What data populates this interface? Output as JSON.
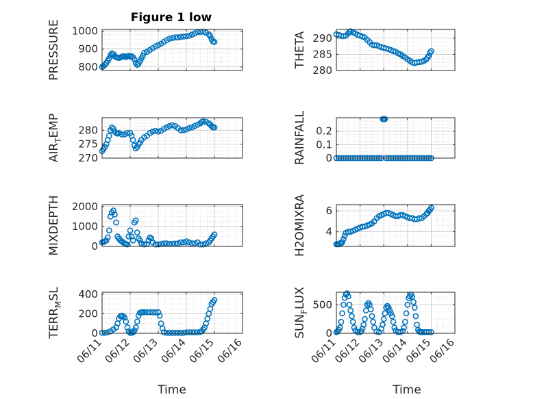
{
  "figure": {
    "title": "Figure 1 low",
    "xlabel": "Time"
  },
  "colors": {
    "marker": "#0072bd",
    "axis": "#262626",
    "grid": "#d7d7d7"
  },
  "chart_data": [
    {
      "type": "scatter",
      "ylabel": "PRESSURE",
      "ylabel_sub": "",
      "xlim": [
        "06/11",
        "06/16"
      ],
      "xticks": [
        "06/11",
        "06/12",
        "06/13",
        "06/14",
        "06/15",
        "06/16"
      ],
      "ylim": [
        780,
        1010
      ],
      "yticks": [
        800,
        900,
        1000
      ],
      "x": [
        11.0,
        11.05,
        11.1,
        11.15,
        11.2,
        11.25,
        11.3,
        11.35,
        11.4,
        11.45,
        11.5,
        11.55,
        11.6,
        11.65,
        11.7,
        11.75,
        11.8,
        11.85,
        11.9,
        11.95,
        12.0,
        12.05,
        12.1,
        12.15,
        12.2,
        12.25,
        12.3,
        12.35,
        12.4,
        12.45,
        12.5,
        12.6,
        12.7,
        12.8,
        12.9,
        13.0,
        13.1,
        13.2,
        13.3,
        13.4,
        13.5,
        13.6,
        13.7,
        13.8,
        13.9,
        14.0,
        14.1,
        14.2,
        14.3,
        14.4,
        14.5,
        14.6,
        14.7,
        14.8,
        14.85,
        14.9,
        14.95,
        15.0
      ],
      "y": [
        800,
        805,
        812,
        822,
        835,
        848,
        865,
        875,
        872,
        860,
        855,
        852,
        850,
        853,
        857,
        860,
        858,
        855,
        860,
        862,
        858,
        860,
        855,
        842,
        822,
        812,
        818,
        832,
        848,
        862,
        878,
        885,
        895,
        905,
        915,
        922,
        930,
        940,
        950,
        958,
        962,
        965,
        965,
        968,
        970,
        972,
        975,
        980,
        988,
        995,
        995,
        998,
        992,
        982,
        972,
        955,
        942,
        940
      ]
    },
    {
      "type": "scatter",
      "ylabel": "THETA",
      "ylabel_sub": "",
      "xlim": [
        "06/11",
        "06/16"
      ],
      "xticks": [
        "06/11",
        "06/12",
        "06/13",
        "06/14",
        "06/15",
        "06/16"
      ],
      "ylim": [
        280,
        292.7
      ],
      "yticks": [
        280,
        285,
        290
      ],
      "x": [
        11.0,
        11.1,
        11.2,
        11.3,
        11.4,
        11.5,
        11.55,
        11.6,
        11.7,
        11.8,
        11.9,
        12.0,
        12.1,
        12.2,
        12.3,
        12.4,
        12.5,
        12.6,
        12.7,
        12.8,
        12.9,
        13.0,
        13.1,
        13.2,
        13.3,
        13.4,
        13.5,
        13.6,
        13.7,
        13.8,
        13.9,
        14.0,
        14.1,
        14.2,
        14.3,
        14.4,
        14.5,
        14.6,
        14.7,
        14.8,
        14.85,
        14.9,
        14.95,
        15.0
      ],
      "y": [
        291.2,
        291,
        290.7,
        290.6,
        290.8,
        291.5,
        292,
        292.1,
        291.8,
        291.5,
        291,
        290.8,
        290.5,
        290.2,
        289.5,
        288.8,
        288,
        287.8,
        287.8,
        287.5,
        287.2,
        287,
        286.8,
        286.6,
        286.3,
        286,
        285.8,
        285.3,
        285,
        284.5,
        284,
        283.5,
        283,
        282.5,
        282.3,
        282.5,
        282.6,
        282.7,
        283,
        283.5,
        284,
        284.5,
        285.5,
        286
      ]
    },
    {
      "type": "scatter",
      "ylabel": "AIR",
      "ylabel_sub": "T",
      "ylabel_tail": "EMP",
      "xlim": [
        "06/11",
        "06/16"
      ],
      "xticks": [
        "06/11",
        "06/12",
        "06/13",
        "06/14",
        "06/15",
        "06/16"
      ],
      "ylim": [
        270,
        284.5
      ],
      "yticks": [
        270,
        275,
        280
      ],
      "x": [
        11.0,
        11.05,
        11.1,
        11.15,
        11.2,
        11.25,
        11.3,
        11.35,
        11.4,
        11.45,
        11.5,
        11.55,
        11.6,
        11.7,
        11.8,
        11.9,
        12.0,
        12.05,
        12.1,
        12.15,
        12.2,
        12.25,
        12.3,
        12.35,
        12.4,
        12.5,
        12.6,
        12.7,
        12.8,
        12.9,
        13.0,
        13.1,
        13.2,
        13.3,
        13.4,
        13.5,
        13.6,
        13.7,
        13.8,
        13.9,
        14.0,
        14.1,
        14.2,
        14.3,
        14.4,
        14.5,
        14.55,
        14.6,
        14.7,
        14.8,
        14.85,
        14.9,
        14.95,
        15.0
      ],
      "y": [
        272.5,
        273.2,
        274,
        275,
        276.5,
        278,
        280,
        281,
        280.5,
        279.5,
        279,
        278.8,
        279,
        278.5,
        278.5,
        279,
        279,
        278,
        276.5,
        274.5,
        273.5,
        274,
        275,
        275.5,
        276.5,
        277.5,
        278,
        279,
        279.5,
        279.8,
        279.5,
        279.8,
        280.5,
        281,
        281.5,
        281.8,
        281.5,
        280.8,
        280,
        280,
        280.3,
        280.8,
        281,
        281.5,
        282,
        282.5,
        283,
        283.2,
        283,
        282.5,
        282,
        281.5,
        281,
        281
      ]
    },
    {
      "type": "scatter",
      "ylabel": "RAINFALL",
      "ylabel_sub": "",
      "xlim": [
        "06/11",
        "06/16"
      ],
      "xticks": [
        "06/11",
        "06/12",
        "06/13",
        "06/14",
        "06/15",
        "06/16"
      ],
      "ylim": [
        0,
        0.3
      ],
      "yticks": [
        0,
        0.1,
        0.2
      ],
      "yticklabels": [
        "0",
        "0.1",
        "0.2"
      ],
      "x": [
        11.0,
        11.1,
        11.2,
        11.3,
        11.4,
        11.5,
        11.6,
        11.7,
        11.8,
        11.9,
        12.0,
        12.1,
        12.2,
        12.3,
        12.4,
        12.5,
        12.6,
        12.7,
        12.8,
        12.9,
        12.96,
        12.99,
        13.02,
        13.05,
        13.1,
        13.2,
        13.3,
        13.4,
        13.5,
        13.6,
        13.7,
        13.8,
        13.9,
        14.0,
        14.1,
        14.2,
        14.3,
        14.4,
        14.5,
        14.6,
        14.7,
        14.8,
        14.9,
        15.0
      ],
      "y": [
        0,
        0,
        0,
        0,
        0,
        0,
        0,
        0,
        0,
        0,
        0,
        0,
        0,
        0,
        0,
        0,
        0,
        0,
        0,
        0,
        0.29,
        0.29,
        0.29,
        0.29,
        0,
        0,
        0,
        0,
        0,
        0,
        0,
        0,
        0,
        0,
        0,
        0,
        0,
        0,
        0,
        0,
        0,
        0,
        0,
        0
      ]
    },
    {
      "type": "scatter",
      "ylabel": "MIXDEPTH",
      "ylabel_sub": "",
      "xlim": [
        "06/11",
        "06/16"
      ],
      "xticks": [
        "06/11",
        "06/12",
        "06/13",
        "06/14",
        "06/15",
        "06/16"
      ],
      "ylim": [
        0,
        2100
      ],
      "yticks": [
        0,
        1000,
        2000
      ],
      "x": [
        11.0,
        11.05,
        11.1,
        11.15,
        11.2,
        11.25,
        11.3,
        11.35,
        11.4,
        11.45,
        11.5,
        11.55,
        11.6,
        11.65,
        11.7,
        11.75,
        11.8,
        11.85,
        11.9,
        11.95,
        12.0,
        12.05,
        12.1,
        12.15,
        12.2,
        12.25,
        12.3,
        12.35,
        12.4,
        12.5,
        12.6,
        12.65,
        12.7,
        12.75,
        12.8,
        12.9,
        13.0,
        13.1,
        13.2,
        13.3,
        13.4,
        13.5,
        13.6,
        13.7,
        13.8,
        13.9,
        14.0,
        14.1,
        14.2,
        14.3,
        14.4,
        14.5,
        14.6,
        14.7,
        14.8,
        14.85,
        14.9,
        14.95,
        15.0
      ],
      "y": [
        200,
        220,
        250,
        300,
        450,
        800,
        1500,
        1700,
        1800,
        1600,
        1200,
        500,
        400,
        300,
        250,
        200,
        150,
        120,
        100,
        500,
        800,
        500,
        300,
        1200,
        1300,
        700,
        400,
        300,
        150,
        100,
        120,
        300,
        450,
        400,
        200,
        100,
        100,
        120,
        150,
        150,
        120,
        130,
        140,
        150,
        200,
        200,
        250,
        200,
        150,
        150,
        200,
        100,
        100,
        150,
        200,
        300,
        400,
        500,
        600
      ]
    },
    {
      "type": "scatter",
      "ylabel": "H2OMIXRA",
      "ylabel_sub": "",
      "xlim": [
        "06/11",
        "06/16"
      ],
      "xticks": [
        "06/11",
        "06/12",
        "06/13",
        "06/14",
        "06/15",
        "06/16"
      ],
      "ylim": [
        2.6,
        6.6
      ],
      "yticks": [
        4,
        6
      ],
      "x": [
        11.0,
        11.05,
        11.1,
        11.15,
        11.2,
        11.25,
        11.3,
        11.35,
        11.4,
        11.5,
        11.6,
        11.7,
        11.8,
        11.9,
        12.0,
        12.1,
        12.2,
        12.3,
        12.4,
        12.5,
        12.6,
        12.7,
        12.8,
        12.9,
        13.0,
        13.1,
        13.2,
        13.3,
        13.4,
        13.5,
        13.6,
        13.7,
        13.8,
        13.9,
        14.0,
        14.1,
        14.2,
        14.3,
        14.4,
        14.5,
        14.6,
        14.7,
        14.8,
        14.85,
        14.9,
        14.95,
        15.0
      ],
      "y": [
        2.8,
        2.8,
        2.8,
        2.9,
        2.9,
        3.0,
        3.3,
        3.6,
        3.9,
        4.0,
        4.0,
        4.1,
        4.2,
        4.3,
        4.4,
        4.5,
        4.5,
        4.6,
        4.7,
        4.8,
        5.0,
        5.3,
        5.5,
        5.6,
        5.7,
        5.8,
        5.8,
        5.7,
        5.6,
        5.5,
        5.5,
        5.6,
        5.6,
        5.5,
        5.4,
        5.3,
        5.3,
        5.2,
        5.2,
        5.3,
        5.3,
        5.5,
        5.7,
        5.8,
        6.0,
        6.1,
        6.3
      ]
    },
    {
      "type": "scatter",
      "ylabel": "TERR",
      "ylabel_sub": "M",
      "ylabel_tail": "SL",
      "xlim": [
        "06/11",
        "06/16"
      ],
      "xticks": [
        "06/11",
        "06/12",
        "06/13",
        "06/14",
        "06/15",
        "06/16"
      ],
      "ylim": [
        0,
        420
      ],
      "yticks": [
        0,
        200,
        400
      ],
      "x": [
        11.0,
        11.1,
        11.2,
        11.3,
        11.4,
        11.5,
        11.55,
        11.6,
        11.65,
        11.7,
        11.75,
        11.8,
        11.85,
        11.9,
        11.95,
        12.0,
        12.05,
        12.1,
        12.15,
        12.2,
        12.25,
        12.3,
        12.35,
        12.4,
        12.45,
        12.5,
        12.6,
        12.7,
        12.8,
        12.9,
        13.0,
        13.05,
        13.1,
        13.15,
        13.2,
        13.3,
        13.4,
        13.5,
        13.6,
        13.7,
        13.8,
        13.9,
        14.0,
        14.1,
        14.2,
        14.3,
        14.4,
        14.5,
        14.55,
        14.6,
        14.65,
        14.7,
        14.75,
        14.8,
        14.85,
        14.9,
        14.95,
        15.0
      ],
      "y": [
        5,
        5,
        10,
        20,
        40,
        60,
        100,
        150,
        175,
        180,
        175,
        160,
        120,
        60,
        20,
        5,
        5,
        10,
        30,
        60,
        120,
        180,
        210,
        215,
        215,
        215,
        215,
        215,
        215,
        215,
        215,
        180,
        100,
        50,
        10,
        5,
        5,
        5,
        5,
        5,
        5,
        5,
        10,
        10,
        10,
        10,
        10,
        15,
        20,
        40,
        60,
        100,
        150,
        200,
        250,
        300,
        320,
        340
      ]
    },
    {
      "type": "scatter",
      "ylabel": "SUN",
      "ylabel_sub": "F",
      "ylabel_tail": "LUX",
      "xlim": [
        "06/11",
        "06/16"
      ],
      "xticks": [
        "06/11",
        "06/12",
        "06/13",
        "06/14",
        "06/15",
        "06/16"
      ],
      "ylim": [
        0,
        720
      ],
      "yticks": [
        0,
        500
      ],
      "x": [
        11.0,
        11.05,
        11.1,
        11.15,
        11.2,
        11.25,
        11.3,
        11.35,
        11.4,
        11.45,
        11.5,
        11.55,
        11.6,
        11.65,
        11.7,
        11.75,
        11.8,
        11.9,
        12.0,
        12.05,
        12.1,
        12.15,
        12.2,
        12.25,
        12.3,
        12.35,
        12.4,
        12.45,
        12.5,
        12.55,
        12.6,
        12.7,
        12.8,
        12.9,
        12.95,
        13.0,
        13.05,
        13.1,
        13.15,
        13.2,
        13.25,
        13.3,
        13.35,
        13.4,
        13.45,
        13.5,
        13.6,
        13.7,
        13.8,
        13.85,
        13.9,
        13.95,
        14.0,
        14.05,
        14.1,
        14.15,
        14.2,
        14.25,
        14.3,
        14.35,
        14.4,
        14.45,
        14.5,
        14.55,
        14.6,
        14.7,
        14.8,
        14.9,
        15.0
      ],
      "y": [
        20,
        30,
        60,
        100,
        200,
        350,
        500,
        620,
        680,
        700,
        650,
        500,
        400,
        300,
        200,
        100,
        50,
        20,
        20,
        40,
        80,
        150,
        250,
        400,
        500,
        530,
        500,
        420,
        300,
        200,
        100,
        30,
        20,
        80,
        150,
        250,
        350,
        450,
        480,
        450,
        400,
        350,
        300,
        200,
        100,
        50,
        20,
        20,
        40,
        100,
        200,
        350,
        500,
        620,
        650,
        680,
        640,
        550,
        450,
        300,
        150,
        60,
        30,
        20,
        20,
        20,
        20,
        20,
        20
      ]
    }
  ]
}
